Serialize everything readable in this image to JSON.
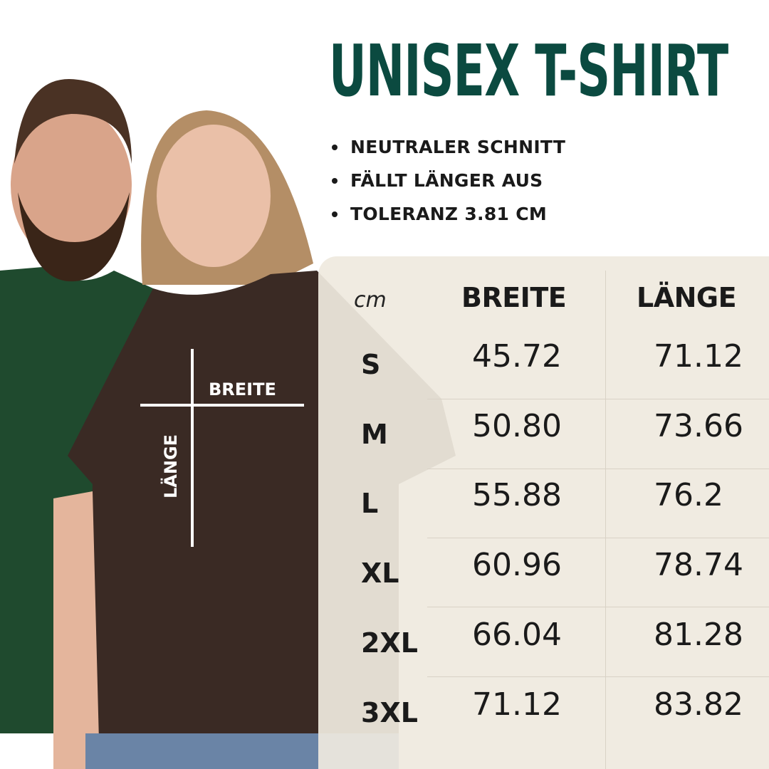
{
  "title": "UNISEX T-SHIRT",
  "features": [
    "NEUTRALER SCHNITT",
    "FÄLLT LÄNGER AUS",
    "TOLERANZ 3.81 CM"
  ],
  "shirt_labels": {
    "width": "BREITE",
    "length": "LÄNGE"
  },
  "table": {
    "unit": "cm",
    "headers": [
      "BREITE",
      "LÄNGE"
    ],
    "rows": [
      {
        "size": "S",
        "breite": "45.72",
        "laenge": "71.12"
      },
      {
        "size": "M",
        "breite": "50.80",
        "laenge": "73.66"
      },
      {
        "size": "L",
        "breite": "55.88",
        "laenge": "76.2"
      },
      {
        "size": "XL",
        "breite": "60.96",
        "laenge": "78.74"
      },
      {
        "size": "2XL",
        "breite": "66.04",
        "laenge": "81.28"
      },
      {
        "size": "3XL",
        "breite": "71.12",
        "laenge": "83.82"
      }
    ]
  },
  "colors": {
    "title": "#0b4a40",
    "panel": "#efe9df",
    "green_shirt": "#1f4a2e",
    "brown_shirt": "#3a2a24"
  }
}
